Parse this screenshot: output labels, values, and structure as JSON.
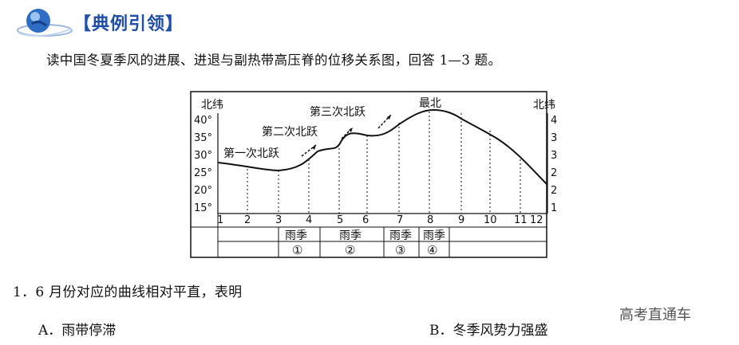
{
  "header": {
    "title": "【典例引领】"
  },
  "intro": "读中国冬夏季风的进展、进退与副热带高压脊的位移关系图，回答 1—3 题。",
  "figure": {
    "left_axis_title": "北纬",
    "right_axis_title": "北纬",
    "lat_ticks": [
      "40°",
      "35°",
      "30°",
      "25°",
      "20°",
      "15°"
    ],
    "months": [
      "1",
      "2",
      "3",
      "4",
      "5",
      "6",
      "7",
      "8",
      "9",
      "10",
      "11",
      "12"
    ],
    "labels": {
      "jump1": "第一次北跃",
      "jump2": "第二次北跃",
      "jump3": "第三次北跃",
      "northmost": "最北"
    },
    "rain_seasons": [
      {
        "label": "雨季",
        "num": "①"
      },
      {
        "label": "雨季",
        "num": "②"
      },
      {
        "label": "雨季",
        "num": "③"
      },
      {
        "label": "雨季",
        "num": "④"
      }
    ]
  },
  "question": "1．6 月份对应的曲线相对平直，表明",
  "options": {
    "a": "A．雨带停滞",
    "b": "B．冬季风势力强盛"
  },
  "watermark": "高考直通车"
}
